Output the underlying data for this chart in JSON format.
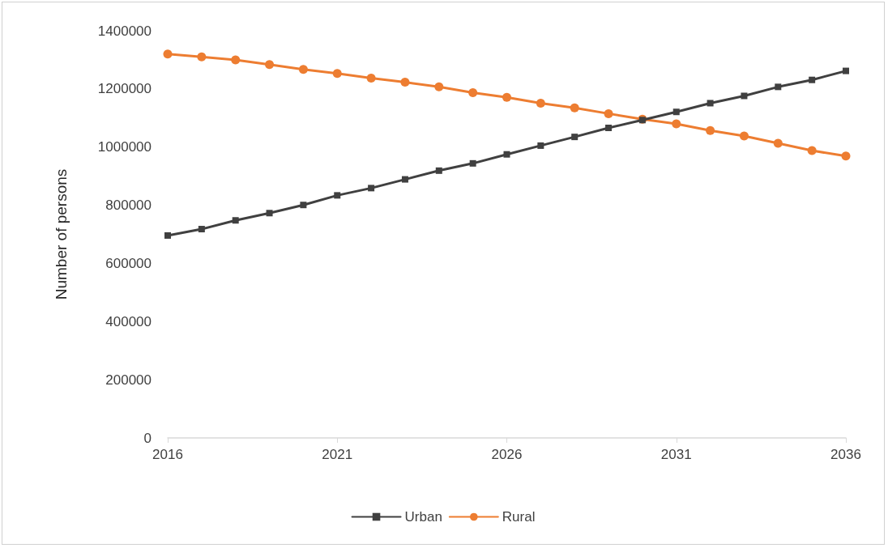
{
  "chart_data": {
    "type": "line",
    "ylabel": "Number of persons",
    "x": [
      2016,
      2017,
      2018,
      2019,
      2020,
      2021,
      2022,
      2023,
      2024,
      2025,
      2026,
      2027,
      2028,
      2029,
      2030,
      2031,
      2032,
      2033,
      2034,
      2035,
      2036
    ],
    "series": [
      {
        "name": "Urban",
        "color": "#404040",
        "marker": "square",
        "values": [
          696000,
          718000,
          748000,
          773000,
          801000,
          834000,
          859000,
          889000,
          919000,
          944000,
          975000,
          1005000,
          1035000,
          1066000,
          1093000,
          1121000,
          1151000,
          1176000,
          1207000,
          1231000,
          1262000
        ]
      },
      {
        "name": "Rural",
        "color": "#ed7d31",
        "marker": "circle",
        "values": [
          1320000,
          1310000,
          1300000,
          1284000,
          1267000,
          1253000,
          1237000,
          1223000,
          1207000,
          1187000,
          1171000,
          1151000,
          1135000,
          1115000,
          1096000,
          1080000,
          1057000,
          1038000,
          1013000,
          988000,
          969000
        ]
      }
    ],
    "xlim": [
      2016,
      2036
    ],
    "xticks": [
      2016,
      2021,
      2026,
      2031,
      2036
    ],
    "ylim": [
      0,
      1400000
    ],
    "yticks": [
      0,
      200000,
      400000,
      600000,
      800000,
      1000000,
      1200000,
      1400000
    ],
    "grid": false,
    "legend": "bottom",
    "line_style": "solid"
  }
}
